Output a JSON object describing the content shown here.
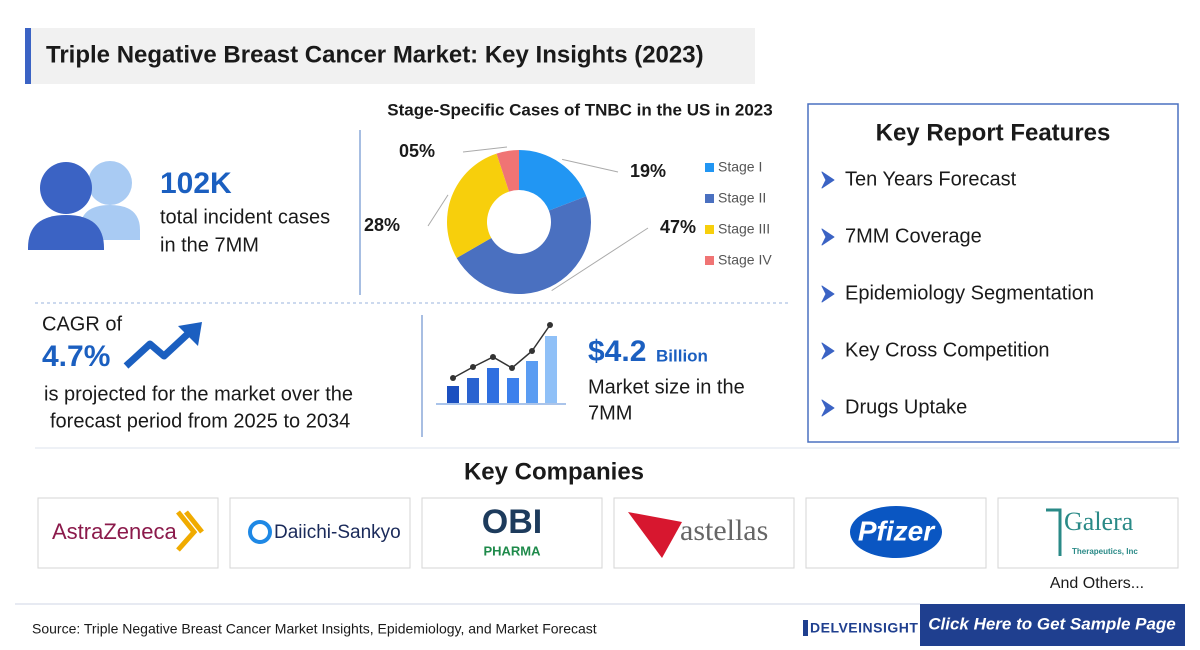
{
  "header": {
    "title": "Triple Negative Breast Cancer Market: Key Insights (2023)"
  },
  "incident": {
    "value": "102K",
    "lines": [
      "total incident cases",
      "in the 7MM"
    ]
  },
  "stage_chart": {
    "type": "pie",
    "title": "Stage-Specific Cases of TNBC in the US in 2023",
    "categories": [
      "Stage I",
      "Stage II",
      "Stage III",
      "Stage IV"
    ],
    "values": [
      19,
      47,
      28,
      5
    ],
    "value_labels": [
      "19%",
      "47%",
      "28%",
      "05%"
    ],
    "colors": [
      "#2196f3",
      "#4a70c0",
      "#f7cf0c",
      "#f07474"
    ]
  },
  "cagr": {
    "label": "CAGR of",
    "value": "4.7%",
    "lines": [
      "is projected for the market over the",
      "forecast period from 2025 to 2034"
    ]
  },
  "market": {
    "value": "$4.2",
    "unit": "Billion",
    "lines": [
      "Market size in the",
      "7MM"
    ]
  },
  "features": {
    "title": "Key Report Features",
    "items": [
      "Ten Years Forecast",
      "7MM Coverage",
      "Epidemiology Segmentation",
      "Key Cross Competition",
      "Drugs Uptake"
    ]
  },
  "companies": {
    "title": "Key Companies",
    "items": [
      {
        "name": "AstraZeneca"
      },
      {
        "name": "Daiichi-Sankyo"
      },
      {
        "name": "OBI",
        "sub": "PHARMA"
      },
      {
        "name": "astellas"
      },
      {
        "name": "Pfizer"
      },
      {
        "name": "Galera",
        "sub": "Therapeutics, Inc"
      }
    ],
    "others": "And Others..."
  },
  "footer": {
    "source": "Source: Triple Negative Breast Cancer Market Insights, Epidemiology, and Market Forecast",
    "brand": "DELVEINSIGHT",
    "cta": "Click Here to Get Sample Page"
  }
}
